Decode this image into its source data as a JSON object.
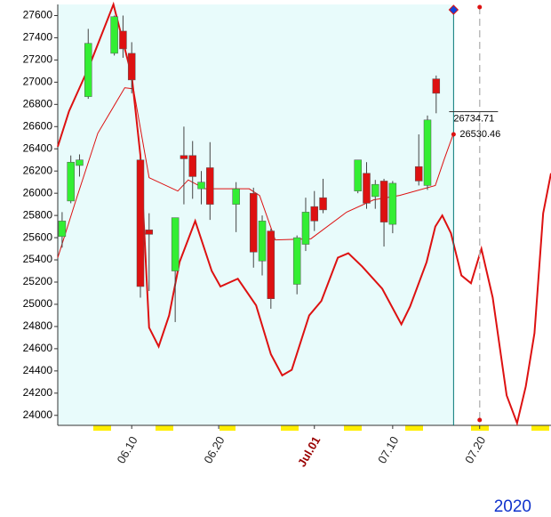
{
  "chart_data": {
    "type": "candlestick",
    "x": [
      1,
      2,
      3,
      4,
      7,
      8,
      9,
      10,
      11,
      14,
      15,
      16,
      17,
      18,
      21,
      23,
      24,
      25,
      28,
      29,
      30,
      31,
      35,
      36,
      37,
      38,
      39,
      42,
      43,
      44
    ],
    "open": [
      25610,
      25930,
      26250,
      26870,
      27260,
      27460,
      27260,
      26300,
      25670,
      25300,
      26340,
      26340,
      26040,
      26230,
      25900,
      26000,
      25390,
      25660,
      25180,
      25540,
      25880,
      25960,
      26020,
      26180,
      25970,
      26110,
      25720,
      26240,
      26070,
      27030
    ],
    "high": [
      25830,
      26340,
      26350,
      27480,
      27600,
      27600,
      27360,
      26310,
      25820,
      25780,
      26600,
      26470,
      26200,
      26460,
      26100,
      26050,
      25800,
      25680,
      25620,
      25960,
      26020,
      26130,
      26300,
      26280,
      26120,
      26130,
      26110,
      26530,
      26700,
      27060
    ],
    "low": [
      25510,
      25910,
      26150,
      26850,
      27240,
      27220,
      26900,
      25060,
      25120,
      24840,
      25900,
      25950,
      25900,
      25760,
      25650,
      25330,
      25260,
      24960,
      25090,
      25480,
      25660,
      25820,
      26000,
      25860,
      25860,
      25520,
      25640,
      26070,
      26030,
      26720
    ],
    "close": [
      25750,
      26280,
      26300,
      27350,
      27590,
      27300,
      27020,
      25160,
      25630,
      25780,
      26310,
      26150,
      26100,
      25900,
      26040,
      25470,
      25750,
      25050,
      25600,
      25830,
      25750,
      25850,
      26300,
      25910,
      26080,
      25740,
      26090,
      26110,
      26660,
      26900
    ],
    "up_color": "#33ee33",
    "down_color": "#dd1111",
    "lines": [
      {
        "color": "#dd1111",
        "width": 2,
        "x": [
          0.5,
          1.8,
          4.1,
          6.9,
          9.0,
          10.0,
          11.0,
          12.1,
          13.3,
          14.5,
          16.3,
          18.2,
          19.2,
          21.2,
          23.3,
          25.0,
          26.3,
          27.4,
          29.4,
          30.8,
          32.7,
          33.9,
          35.5,
          37.8,
          40.0,
          41.0,
          42.9,
          43.9,
          44.7,
          45.7,
          46.9,
          48.0,
          49.2,
          50.5,
          52.1,
          53.3,
          54.3,
          55.3,
          56.3,
          57.2
        ],
        "values": [
          26420,
          26740,
          27140,
          27700,
          27060,
          26340,
          24790,
          24620,
          24900,
          25380,
          25750,
          25300,
          25160,
          25230,
          24990,
          24550,
          24360,
          24410,
          24900,
          25030,
          25420,
          25460,
          25340,
          25140,
          24820,
          24980,
          25380,
          25700,
          25800,
          25640,
          25260,
          25190,
          25500,
          25060,
          24180,
          23930,
          24260,
          24740,
          25820,
          26180
        ]
      },
      {
        "color": "#dd1111",
        "width": 1,
        "x": [
          0.5,
          2.6,
          5.1,
          8.2,
          9.2,
          11.0,
          14.3,
          15.5,
          17.4,
          22.5,
          23.7,
          25.5,
          29.6,
          33.7,
          36.8,
          39.8,
          43.9,
          44.9,
          46.0
        ],
        "values": [
          25420,
          25940,
          26540,
          26950,
          26940,
          26140,
          26020,
          26120,
          26040,
          26040,
          25980,
          25580,
          25590,
          25830,
          25940,
          25980,
          26070,
          26300,
          26540
        ]
      }
    ],
    "cursor": {
      "x": 46,
      "color": "#007777",
      "marker_color": "#1144dd"
    },
    "forecast": {
      "x": 49,
      "color": "#bbbbbb",
      "marker_color": "#dd1111"
    },
    "price_line": 26734.71,
    "price_point": 26530.46,
    "xlim": [
      0.5,
      57.2
    ],
    "xticks": [
      {
        "value": 9,
        "label": "06.10"
      },
      {
        "value": 19,
        "label": "06.20"
      },
      {
        "value": 30,
        "label": "Jul.01",
        "color": "#990000"
      },
      {
        "value": 39,
        "label": "07.10"
      },
      {
        "value": 49,
        "label": "07.20"
      }
    ],
    "ylim": [
      23910,
      27700
    ],
    "yticks": [
      24000,
      24200,
      24400,
      24600,
      24800,
      25000,
      25200,
      25400,
      25600,
      25800,
      26000,
      26200,
      26400,
      26600,
      26800,
      27000,
      27200,
      27400,
      27600
    ],
    "year": "2020"
  }
}
